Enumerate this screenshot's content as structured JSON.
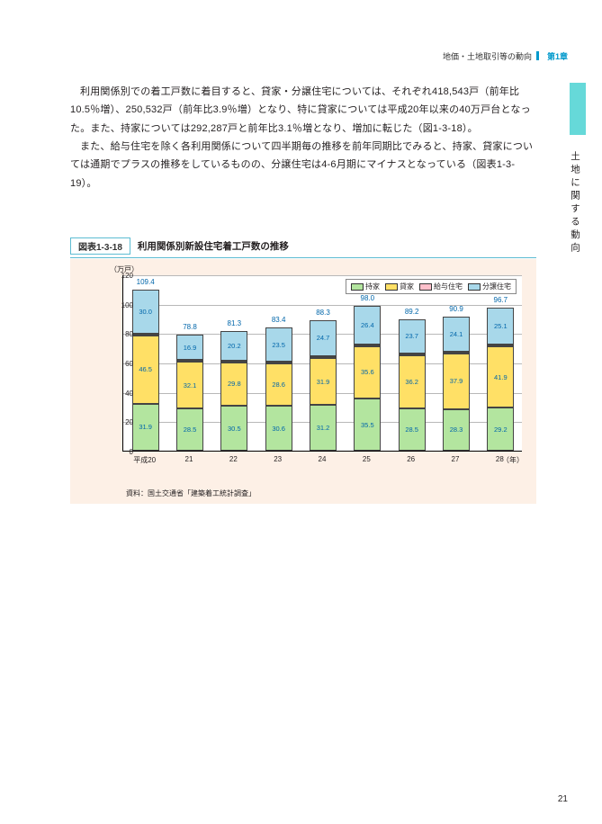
{
  "header": {
    "section": "地価・土地取引等の動向",
    "chapter": "第1章"
  },
  "side_title": "土地に関する動向",
  "paragraphs": [
    "利用関係別での着工戸数に着目すると、貸家・分譲住宅については、それぞれ418,543戸（前年比10.5％増）、250,532戸（前年比3.9％増）となり、特に貸家については平成20年以来の40万戸台となった。また、持家については292,287戸と前年比3.1％増となり、増加に転じた（図1-3-18）。",
    "また、給与住宅を除く各利用関係について四半期毎の推移を前年同期比でみると、持家、貸家については通期でプラスの推移をしているものの、分譲住宅は4-6月期にマイナスとなっている（図表1-3-19）。"
  ],
  "figure": {
    "label": "図表1-3-18",
    "title": "利用関係別新設住宅着工戸数の推移",
    "ylabel": "（万戸）",
    "xaxis_suffix": "（年）",
    "source": "資料：国土交通省「建築着工統計調査」",
    "ylim": [
      0,
      120
    ],
    "ytick_step": 20,
    "legend": [
      {
        "label": "持家",
        "color": "#b3e59f"
      },
      {
        "label": "貸家",
        "color": "#ffe066"
      },
      {
        "label": "給与住宅",
        "color": "#ffc0cb"
      },
      {
        "label": "分譲住宅",
        "color": "#a8d8ea"
      }
    ],
    "categories": [
      "平成20",
      "21",
      "22",
      "23",
      "24",
      "25",
      "26",
      "27",
      "28"
    ],
    "totals": [
      109.4,
      78.8,
      81.3,
      83.4,
      88.3,
      98.0,
      89.2,
      90.9,
      96.7
    ],
    "series": {
      "owner": [
        31.9,
        28.5,
        30.5,
        30.6,
        31.2,
        35.5,
        28.5,
        28.3,
        29.2
      ],
      "rental": [
        46.5,
        32.1,
        29.8,
        28.6,
        31.9,
        35.6,
        36.2,
        37.9,
        41.9
      ],
      "company": [
        1.0,
        1.3,
        0.8,
        0.8,
        0.6,
        0.5,
        0.7,
        0.6,
        0.6
      ],
      "condo": [
        30.0,
        16.9,
        20.2,
        23.5,
        24.7,
        26.4,
        23.7,
        24.1,
        25.1
      ]
    },
    "colors": {
      "owner": "#b3e59f",
      "rental": "#ffe066",
      "company": "#ffc0cb",
      "condo": "#a8d8ea",
      "grid": "#b8b8b8",
      "value_text": "#0066aa"
    }
  },
  "page_number": "21"
}
